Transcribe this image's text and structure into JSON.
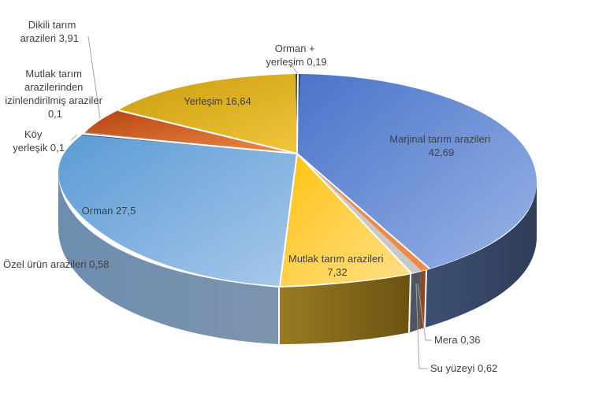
{
  "chart_data": {
    "type": "pie",
    "title": "",
    "slices": [
      {
        "name": "Marjinal tarım arazileri",
        "value": 42.69,
        "display": "42,69",
        "color": "#6f90d8"
      },
      {
        "name": "Orman + yerleşim",
        "value": 0.19,
        "display": "0,19",
        "color": "#1f3864"
      },
      {
        "name": "Yerleşim",
        "value": 16.64,
        "display": "16,64",
        "color": "#e2b21c"
      },
      {
        "name": "Dikili tarım arazileri",
        "value": 3.91,
        "display": "3,91",
        "color": "#d4602a"
      },
      {
        "name": "Mutlak tarım arazilerinden izinlendirilmiş araziler",
        "value": 0.1,
        "display": "0,1",
        "color": "#8a8a8a"
      },
      {
        "name": "Köy yerleşik",
        "value": 0.1,
        "display": "0,1",
        "color": "#27467e"
      },
      {
        "name": "Orman",
        "value": 27.5,
        "display": "27,5",
        "color": "#79a9dc"
      },
      {
        "name": "Özel ürün arazileri",
        "value": 0.58,
        "display": "0,58",
        "color": "#264478"
      },
      {
        "name": "Mutlak tarım arazileri",
        "value": 7.32,
        "display": "7,32",
        "color": "#fdc93a"
      },
      {
        "name": "Su yüzeyi",
        "value": 0.62,
        "display": "0,62",
        "color": "#c9c9c9"
      },
      {
        "name": "Mera",
        "value": 0.36,
        "display": "0,36",
        "color": "#e8823c"
      }
    ],
    "labels": [
      {
        "lines": [
          "Marjinal tarım arazileri",
          "42,69"
        ]
      },
      {
        "lines": [
          "Orman +",
          "yerleşim 0,19"
        ]
      },
      {
        "lines": [
          "Yerleşim 16,64"
        ]
      },
      {
        "lines": [
          "Dikili tarım",
          "arazileri 3,91"
        ]
      },
      {
        "lines": [
          "Mutlak tarım",
          "arazilerinden",
          "izinlendirilmiş araziler",
          "0,1"
        ]
      },
      {
        "lines": [
          "Köy",
          "yerleşik 0,1"
        ]
      },
      {
        "lines": [
          "Orman 27,5"
        ]
      },
      {
        "lines": [
          "Özel ürün arazileri 0,58"
        ]
      },
      {
        "lines": [
          "Mutlak tarım arazileri",
          "7,32"
        ]
      },
      {
        "lines": [
          "Su yüzeyi 0,62"
        ]
      },
      {
        "lines": [
          "Mera 0,36"
        ]
      }
    ]
  }
}
